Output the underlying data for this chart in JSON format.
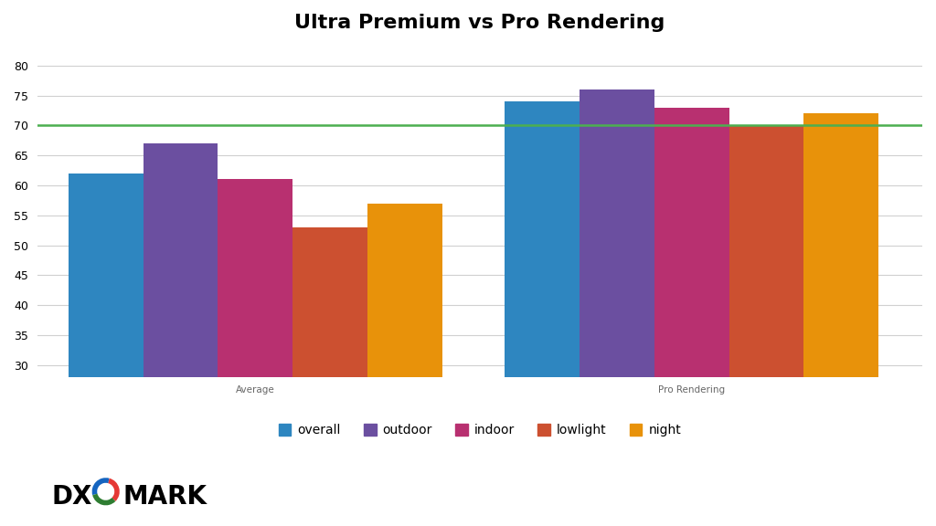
{
  "title": "Ultra Premium vs Pro Rendering",
  "groups": [
    "Average",
    "Pro Rendering"
  ],
  "categories": [
    "overall",
    "outdoor",
    "indoor",
    "lowlight",
    "night"
  ],
  "values": {
    "Average": [
      62,
      67,
      61,
      53,
      57
    ],
    "Pro Rendering": [
      74,
      76,
      73,
      70,
      72
    ]
  },
  "colors": [
    "#2e86c0",
    "#6b4fa0",
    "#b83070",
    "#cc5030",
    "#e8920a"
  ],
  "ylim": [
    28,
    82
  ],
  "yticks": [
    30,
    35,
    40,
    45,
    50,
    55,
    60,
    65,
    70,
    75,
    80
  ],
  "hline_y": 70,
  "hline_color": "#4caf50",
  "background_color": "#ffffff",
  "grid_color": "#d0d0d0",
  "title_fontsize": 16,
  "tick_fontsize": 9,
  "legend_fontsize": 10,
  "group_label_fontsize": 7.5,
  "bar_width": 0.12,
  "group_centers": [
    0.35,
    1.05
  ],
  "xlim": [
    0.0,
    1.42
  ]
}
